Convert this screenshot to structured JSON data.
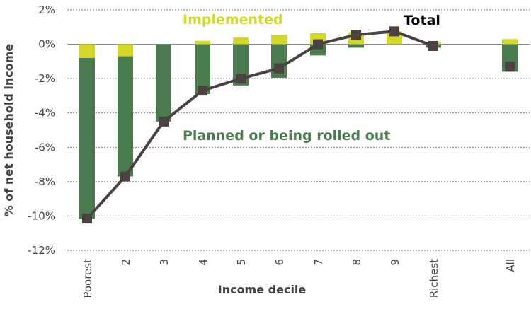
{
  "chart_data": {
    "type": "bar",
    "categories": [
      "Poorest",
      "2",
      "3",
      "4",
      "5",
      "6",
      "7",
      "8",
      "9",
      "Richest",
      "All"
    ],
    "series": [
      {
        "name": "Implemented",
        "values": [
          -0.8,
          -0.7,
          0.0,
          0.2,
          0.4,
          0.55,
          0.65,
          0.7,
          0.75,
          0.1,
          0.3
        ],
        "color": "#d4d62a"
      },
      {
        "name": "Planned or being rolled out",
        "values": [
          -9.35,
          -7.0,
          -4.5,
          -2.9,
          -2.4,
          -1.95,
          -0.65,
          -0.2,
          -0.05,
          -0.2,
          -1.6
        ],
        "color": "#4a7a4e"
      },
      {
        "name": "Total",
        "type": "line",
        "values": [
          -10.15,
          -7.7,
          -4.5,
          -2.7,
          -2.0,
          -1.4,
          0.0,
          0.55,
          0.75,
          -0.1,
          -1.3
        ],
        "color": "#4b4140"
      }
    ],
    "xlabel": "Income decile",
    "ylabel": "% of net household income",
    "ylim": [
      -12,
      2
    ],
    "yticks": [
      "2%",
      "0%",
      "-2%",
      "-4%",
      "-6%",
      "-8%",
      "-10%",
      "-12%"
    ],
    "grid": true,
    "stacked": true
  },
  "annotations": {
    "implemented": "Implemented",
    "total": "Total",
    "planned": "Planned or being rolled out"
  }
}
